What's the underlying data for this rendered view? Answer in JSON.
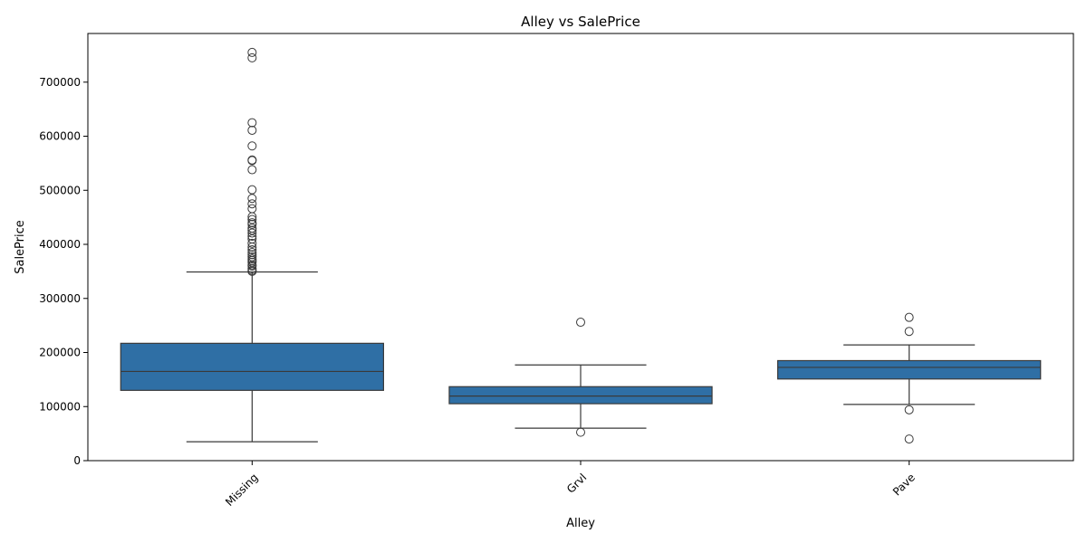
{
  "chart_data": {
    "type": "box",
    "title": "Alley vs SalePrice",
    "xlabel": "Alley",
    "ylabel": "SalePrice",
    "ylim": [
      0,
      790000
    ],
    "yticks": [
      0,
      100000,
      200000,
      300000,
      400000,
      500000,
      600000,
      700000
    ],
    "ytick_labels": [
      "0",
      "100000",
      "200000",
      "300000",
      "400000",
      "500000",
      "600000",
      "700000"
    ],
    "categories": [
      "Missing",
      "Grvl",
      "Pave"
    ],
    "box_color": "#2f6fa5",
    "line_color": "#3a3a3a",
    "grid": false,
    "legend": "none",
    "boxes": [
      {
        "category": "Missing",
        "whisker_low": 34900,
        "q1": 130000,
        "median": 165000,
        "q3": 217000,
        "whisker_high": 349000,
        "outliers": [
          350000,
          352000,
          355000,
          360000,
          362000,
          367000,
          370000,
          373000,
          377000,
          381000,
          385000,
          390000,
          395000,
          402000,
          410000,
          415000,
          421000,
          426000,
          430000,
          437000,
          440000,
          446000,
          451000,
          466000,
          475000,
          485000,
          501000,
          538000,
          555000,
          556000,
          582000,
          611000,
          625000,
          745000,
          755000
        ]
      },
      {
        "category": "Grvl",
        "whisker_low": 60000,
        "q1": 105300,
        "median": 119500,
        "q3": 136800,
        "whisker_high": 177000,
        "outliers": [
          256000,
          52500
        ]
      },
      {
        "category": "Pave",
        "whisker_low": 104000,
        "q1": 151000,
        "median": 172500,
        "q3": 185000,
        "whisker_high": 214000,
        "outliers": [
          265000,
          239000,
          94000,
          40000
        ]
      }
    ]
  }
}
